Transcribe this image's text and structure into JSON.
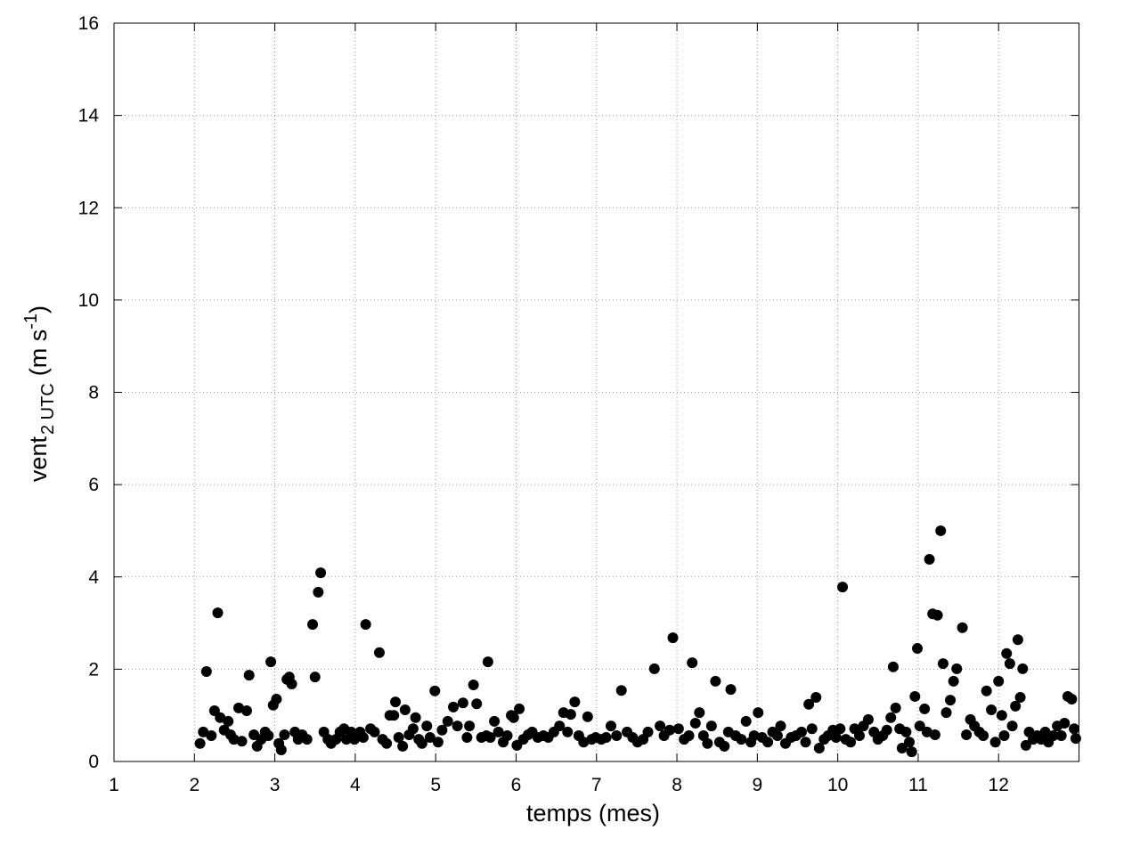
{
  "chart_data": {
    "type": "scatter",
    "xlabel": "temps (mes)",
    "ylabel": {
      "main": "vent",
      "sub": "2 UTC",
      "unit": "(m s",
      "sup": "-1",
      "close": ")"
    },
    "xlim": [
      1,
      13
    ],
    "ylim": [
      0,
      16
    ],
    "xticks": [
      1,
      2,
      3,
      4,
      5,
      6,
      7,
      8,
      9,
      10,
      11,
      12
    ],
    "yticks": [
      0,
      2,
      4,
      6,
      8,
      10,
      12,
      14,
      16
    ],
    "grid": true,
    "color": "#000000",
    "x": [
      2.07,
      2.11,
      2.15,
      2.21,
      2.25,
      2.29,
      2.32,
      2.37,
      2.42,
      2.45,
      2.49,
      2.55,
      2.59,
      2.65,
      2.68,
      2.74,
      2.78,
      2.83,
      2.88,
      2.92,
      2.95,
      2.98,
      3.02,
      3.05,
      3.08,
      3.12,
      3.15,
      3.18,
      3.21,
      3.25,
      3.29,
      3.34,
      3.4,
      3.47,
      3.5,
      3.54,
      3.57,
      3.61,
      3.66,
      3.7,
      3.76,
      3.81,
      3.86,
      3.89,
      3.95,
      3.99,
      4.06,
      4.1,
      4.13,
      4.19,
      4.24,
      4.3,
      4.34,
      4.39,
      4.43,
      4.48,
      4.5,
      4.54,
      4.59,
      4.62,
      4.67,
      4.72,
      4.75,
      4.79,
      4.83,
      4.89,
      4.93,
      4.99,
      5.03,
      5.08,
      5.15,
      5.22,
      5.27,
      5.34,
      5.39,
      5.42,
      5.47,
      5.51,
      5.57,
      5.63,
      5.65,
      5.68,
      5.73,
      5.78,
      5.84,
      5.89,
      5.94,
      5.97,
      6.01,
      6.04,
      6.09,
      6.15,
      6.2,
      6.27,
      6.34,
      6.4,
      6.47,
      6.54,
      6.59,
      6.64,
      6.68,
      6.73,
      6.78,
      6.84,
      6.89,
      6.94,
      6.99,
      7.06,
      7.12,
      7.18,
      7.25,
      7.31,
      7.38,
      7.45,
      7.51,
      7.58,
      7.64,
      7.72,
      7.79,
      7.84,
      7.91,
      7.95,
      8.02,
      8.09,
      8.15,
      8.19,
      8.23,
      8.28,
      8.33,
      8.38,
      8.43,
      8.48,
      8.53,
      8.59,
      8.64,
      8.67,
      8.73,
      8.8,
      8.86,
      8.92,
      8.96,
      9.01,
      9.06,
      9.13,
      9.19,
      9.25,
      9.29,
      9.35,
      9.42,
      9.48,
      9.55,
      9.6,
      9.64,
      9.68,
      9.73,
      9.77,
      9.83,
      9.88,
      9.94,
      9.98,
      10.03,
      10.06,
      10.1,
      10.16,
      10.21,
      10.27,
      10.32,
      10.38,
      10.45,
      10.5,
      10.56,
      10.61,
      10.66,
      10.69,
      10.72,
      10.77,
      10.8,
      10.85,
      10.89,
      10.92,
      10.96,
      10.99,
      11.02,
      11.08,
      11.11,
      11.14,
      11.18,
      11.21,
      11.24,
      11.28,
      11.31,
      11.35,
      11.4,
      11.44,
      11.48,
      11.55,
      11.6,
      11.65,
      11.7,
      11.76,
      11.81,
      11.85,
      11.91,
      11.96,
      12.0,
      12.04,
      12.07,
      12.1,
      12.14,
      12.17,
      12.21,
      12.24,
      12.27,
      12.3,
      12.34,
      12.38,
      12.43,
      12.48,
      12.53,
      12.58,
      12.62,
      12.68,
      12.73,
      12.78,
      12.82,
      12.86,
      12.91,
      12.94,
      12.96
    ],
    "values": [
      0.39,
      0.64,
      1.95,
      0.56,
      1.1,
      3.22,
      0.95,
      0.68,
      0.87,
      0.58,
      0.48,
      1.16,
      0.44,
      1.1,
      1.87,
      0.58,
      0.33,
      0.48,
      0.64,
      0.56,
      2.16,
      1.22,
      1.35,
      0.39,
      0.25,
      0.58,
      1.78,
      1.83,
      1.68,
      0.64,
      0.48,
      0.58,
      0.48,
      2.97,
      1.83,
      3.67,
      4.09,
      0.64,
      0.48,
      0.39,
      0.48,
      0.64,
      0.71,
      0.48,
      0.64,
      0.48,
      0.64,
      0.52,
      2.97,
      0.71,
      0.64,
      2.36,
      0.48,
      0.39,
      1.0,
      1.0,
      1.29,
      0.52,
      0.33,
      1.12,
      0.58,
      0.71,
      0.95,
      0.48,
      0.39,
      0.77,
      0.52,
      1.53,
      0.42,
      0.68,
      0.87,
      1.18,
      0.77,
      1.27,
      0.52,
      0.77,
      1.66,
      1.25,
      0.52,
      0.56,
      2.16,
      0.52,
      0.87,
      0.64,
      0.42,
      0.56,
      1.0,
      0.95,
      0.35,
      1.14,
      0.48,
      0.58,
      0.64,
      0.52,
      0.56,
      0.52,
      0.64,
      0.77,
      1.06,
      0.64,
      1.02,
      1.29,
      0.56,
      0.42,
      0.97,
      0.48,
      0.52,
      0.48,
      0.52,
      0.77,
      0.56,
      1.54,
      0.64,
      0.52,
      0.42,
      0.48,
      0.64,
      2.01,
      0.77,
      0.56,
      0.68,
      2.68,
      0.71,
      0.48,
      0.56,
      2.14,
      0.83,
      1.06,
      0.56,
      0.39,
      0.77,
      1.74,
      0.42,
      0.33,
      0.64,
      1.56,
      0.56,
      0.48,
      0.87,
      0.42,
      0.56,
      1.06,
      0.52,
      0.42,
      0.64,
      0.56,
      0.77,
      0.39,
      0.52,
      0.56,
      0.64,
      0.42,
      1.24,
      0.71,
      1.39,
      0.29,
      0.48,
      0.56,
      0.68,
      0.52,
      0.71,
      3.78,
      0.48,
      0.42,
      0.71,
      0.56,
      0.77,
      0.91,
      0.64,
      0.48,
      0.56,
      0.68,
      0.95,
      2.05,
      1.16,
      0.71,
      0.29,
      0.64,
      0.42,
      0.21,
      1.41,
      2.45,
      0.77,
      1.14,
      0.64,
      4.38,
      3.2,
      0.58,
      3.17,
      5.0,
      2.12,
      1.06,
      1.33,
      1.74,
      2.01,
      2.9,
      0.58,
      0.91,
      0.77,
      0.64,
      0.56,
      1.53,
      1.12,
      0.42,
      1.74,
      1.0,
      0.56,
      2.34,
      2.12,
      0.77,
      1.2,
      2.64,
      1.39,
      2.01,
      0.35,
      0.64,
      0.48,
      0.56,
      0.48,
      0.64,
      0.42,
      0.56,
      0.77,
      0.56,
      0.83,
      1.41,
      1.35,
      0.71,
      0.5
    ]
  }
}
